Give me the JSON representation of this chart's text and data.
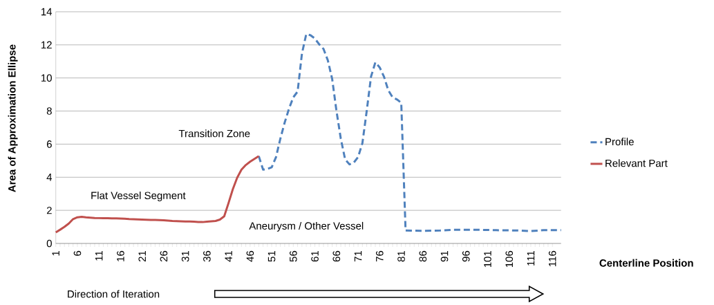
{
  "chart_data": {
    "type": "line",
    "xlabel": "Centerline Position",
    "ylabel": "Area of Approximation Ellipse",
    "xlim": [
      1,
      118
    ],
    "xticks": [
      1,
      6,
      11,
      16,
      21,
      26,
      31,
      36,
      41,
      46,
      51,
      56,
      61,
      66,
      71,
      76,
      81,
      86,
      91,
      96,
      101,
      106,
      111,
      116
    ],
    "ylim": [
      0,
      14
    ],
    "yticks": [
      0,
      2,
      4,
      6,
      8,
      10,
      12,
      14
    ],
    "grid": "y",
    "legend": "right",
    "series": [
      {
        "name": "Profile",
        "color": "#4f81bd",
        "line_style": "dashed",
        "x": [
          48,
          49,
          50,
          51,
          52,
          53,
          54,
          55,
          56,
          57,
          58,
          59,
          60,
          61,
          62,
          63,
          64,
          65,
          66,
          67,
          68,
          69,
          70,
          71,
          72,
          73,
          74,
          75,
          76,
          77,
          78,
          79,
          80,
          81,
          82,
          86,
          90,
          93,
          98,
          103,
          108,
          111,
          114,
          118
        ],
        "values": [
          5.28,
          4.46,
          4.5,
          4.6,
          5.22,
          6.33,
          7.3,
          8.14,
          8.83,
          9.18,
          11.47,
          12.65,
          12.58,
          12.38,
          12.03,
          11.75,
          11.06,
          9.94,
          8.0,
          6.33,
          5.08,
          4.78,
          4.88,
          5.22,
          6.06,
          8.0,
          10.08,
          10.94,
          10.64,
          10.08,
          9.25,
          8.83,
          8.7,
          8.5,
          0.78,
          0.76,
          0.78,
          0.82,
          0.83,
          0.8,
          0.78,
          0.75,
          0.8,
          0.8
        ]
      },
      {
        "name": "Relevant Part",
        "color": "#c0504d",
        "line_style": "solid",
        "x": [
          1,
          2,
          3,
          4,
          5,
          6,
          7,
          8,
          9,
          10,
          11,
          12,
          13,
          14,
          15,
          16,
          17,
          18,
          19,
          20,
          21,
          22,
          23,
          24,
          25,
          26,
          27,
          28,
          29,
          30,
          31,
          32,
          33,
          34,
          35,
          36,
          37,
          38,
          39,
          40,
          41,
          42,
          43,
          44,
          45,
          46,
          47,
          48
        ],
        "values": [
          0.67,
          0.83,
          1.0,
          1.2,
          1.47,
          1.58,
          1.61,
          1.58,
          1.56,
          1.54,
          1.53,
          1.52,
          1.52,
          1.51,
          1.51,
          1.5,
          1.49,
          1.47,
          1.46,
          1.45,
          1.44,
          1.43,
          1.42,
          1.42,
          1.41,
          1.4,
          1.38,
          1.36,
          1.35,
          1.34,
          1.33,
          1.33,
          1.32,
          1.3,
          1.29,
          1.32,
          1.34,
          1.36,
          1.44,
          1.64,
          2.44,
          3.28,
          3.97,
          4.46,
          4.74,
          4.94,
          5.11,
          5.28
        ]
      }
    ],
    "annotations": [
      "Flat Vessel Segment",
      "Transition Zone",
      "Aneurysm / Other Vessel",
      "Direction of Iteration"
    ]
  }
}
